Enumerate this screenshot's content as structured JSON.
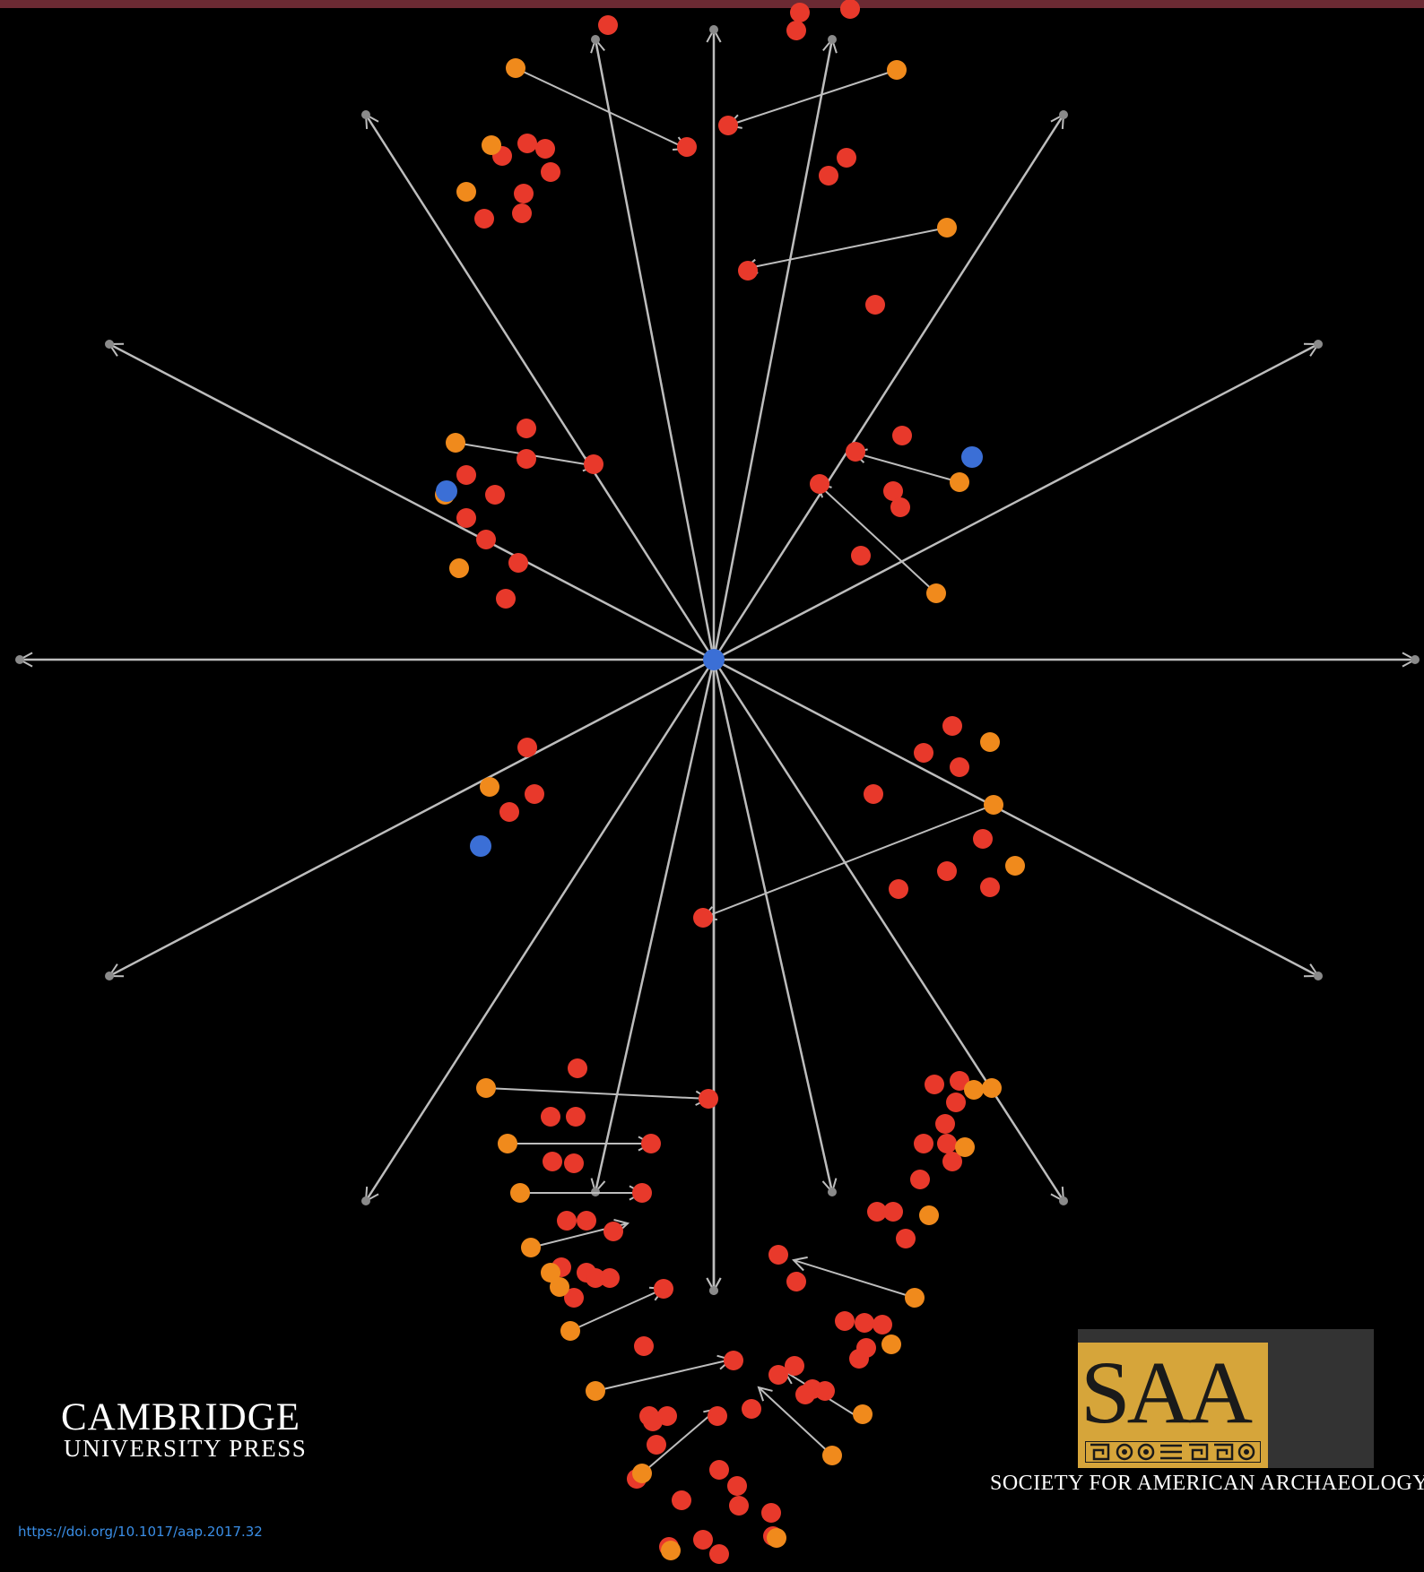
{
  "publisher": {
    "name": "CAMBRIDGE",
    "press": "UNIVERSITY PRESS"
  },
  "doi": "https://doi.org/10.1017/aap.2017.32",
  "society": {
    "acronym": "SAA",
    "name": "SOCIETY FOR AMERICAN ARCHAEOLOGY"
  },
  "colors": {
    "background": "#000000",
    "top_bar": "#6b2a33",
    "ray": "#bdbdbd",
    "node_red": "#e8392b",
    "node_orange": "#f08a1c",
    "node_blue": "#3b6fd6",
    "saa_gold": "#d6a53a",
    "doi_link": "#3a8ee6"
  }
}
